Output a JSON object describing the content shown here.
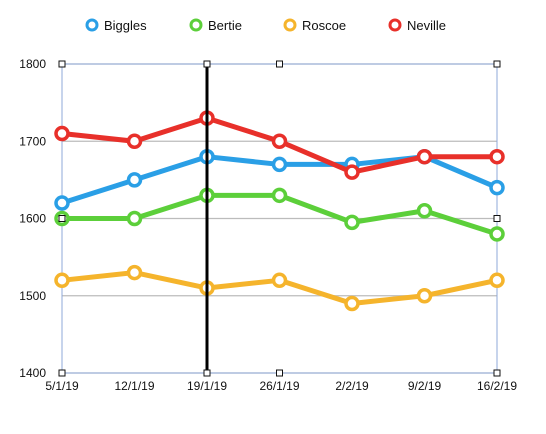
{
  "chart_data": {
    "type": "line",
    "categories": [
      "5/1/19",
      "12/1/19",
      "19/1/19",
      "26/1/19",
      "2/2/19",
      "9/2/19",
      "16/2/19"
    ],
    "ylim": [
      1400,
      1800
    ],
    "yticks": [
      1400,
      1500,
      1600,
      1700,
      1800
    ],
    "grid": true,
    "legend_position": "top",
    "series": [
      {
        "name": "Biggles",
        "color": "#2a9fe6",
        "values": [
          1620,
          1650,
          1680,
          1670,
          1670,
          1680,
          1640
        ]
      },
      {
        "name": "Bertie",
        "color": "#5ccf3a",
        "values": [
          1600,
          1600,
          1630,
          1630,
          1595,
          1610,
          1580
        ]
      },
      {
        "name": "Roscoe",
        "color": "#f5b42c",
        "values": [
          1520,
          1530,
          1510,
          1520,
          1490,
          1500,
          1520
        ]
      },
      {
        "name": "Neville",
        "color": "#e8302a",
        "values": [
          1710,
          1700,
          1730,
          1700,
          1660,
          1680,
          1680
        ]
      }
    ],
    "marker_line_at": "19/1/19"
  }
}
